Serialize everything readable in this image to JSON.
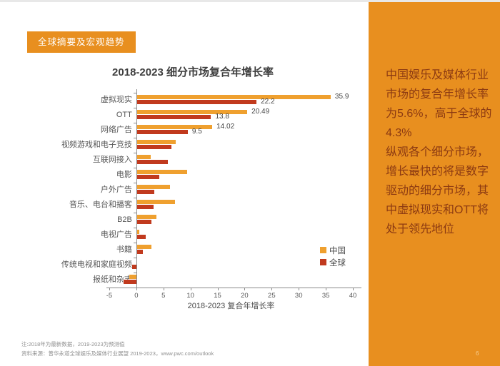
{
  "badge": {
    "label": "全球摘要及宏观趋势",
    "background": "#E88F1F",
    "text_color": "#FFFFFF"
  },
  "chart_data": {
    "type": "bar",
    "orientation": "horizontal",
    "title": "2018-2023 细分市场复合年增长率",
    "xlabel": "2018-2023 复合年增长率",
    "xlim": [
      -5,
      40
    ],
    "xticks": [
      -5,
      0,
      5,
      10,
      15,
      20,
      25,
      30,
      35,
      40
    ],
    "grid": false,
    "legend_position": "middle-right",
    "categories": [
      "虚拟现实",
      "OTT",
      "网络广告",
      "视频游戏和电子竞技",
      "互联网接入",
      "电影",
      "户外广告",
      "音乐、电台和播客",
      "B2B",
      "电视广告",
      "书籍",
      "传统电视和家庭视频",
      "报纸和杂志"
    ],
    "series": [
      {
        "name": "中国",
        "color": "#EFA02F",
        "values": [
          35.9,
          20.49,
          14.02,
          7.3,
          2.6,
          9.4,
          6.2,
          7.2,
          3.7,
          0.5,
          2.8,
          0.1,
          -1.3
        ],
        "data_labels": [
          "35.9",
          "20.49",
          "14.02",
          "",
          "",
          "",
          "",
          "",
          "",
          "",
          "",
          "",
          ""
        ]
      },
      {
        "name": "全球",
        "color": "#C13A1E",
        "values": [
          22.2,
          13.8,
          9.5,
          6.5,
          5.8,
          4.3,
          3.3,
          3.2,
          2.8,
          1.7,
          1.2,
          -0.8,
          -2.3
        ],
        "data_labels": [
          "22.2",
          "13.8",
          "9.5",
          "",
          "",
          "",
          "",
          "",
          "",
          "",
          "",
          "",
          ""
        ]
      }
    ]
  },
  "sidebar": {
    "background": "#E88F1F",
    "text_color": "#8C3A12",
    "paragraphs": {
      "p1": "中国娱乐及媒体行业市场的复合年增长率为5.6%，高于全球的4.3%",
      "p2": "纵观各个细分市场，增长最快的将是数字驱动的细分市场，其中虚拟现实和OTT将处于领先地位"
    },
    "page_number": "6"
  },
  "footnotes": {
    "note": "注:2018年为最新数据，2019-2023为预测值",
    "source": "资料来源：普华永道全球娱乐及媒体行业展望 2019-2023，www.pwc.com/outlook"
  }
}
